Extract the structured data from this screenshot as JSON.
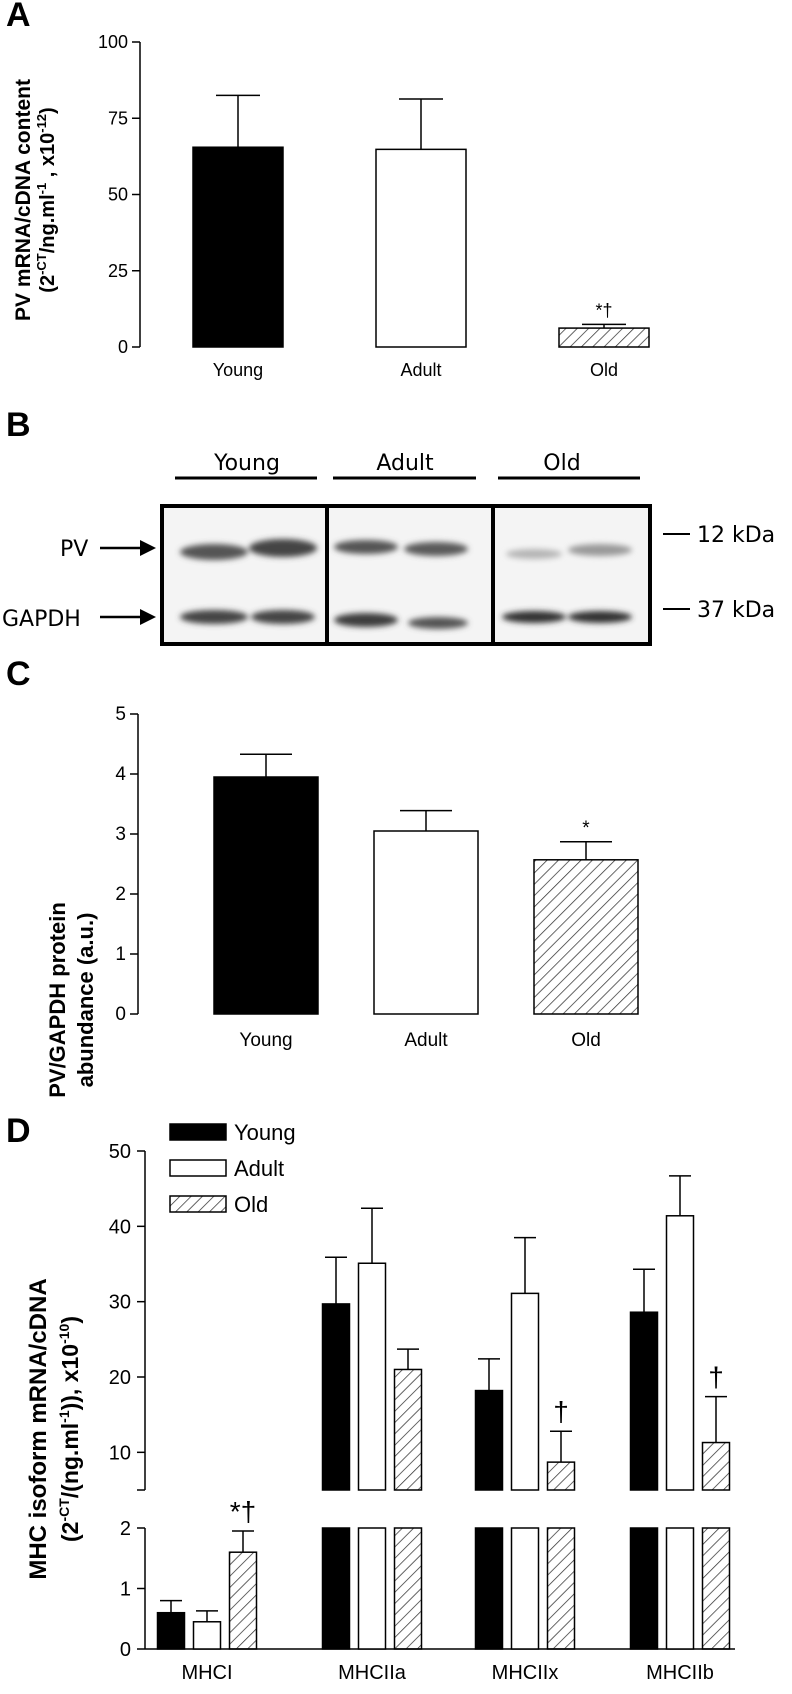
{
  "panels": {
    "a": {
      "letter": "A",
      "ylabel_line1": "PV mRNA/cDNA content",
      "ylabel_line2_parts": [
        "(2",
        "-CT",
        "/ng.ml",
        "-1",
        " , x10",
        "-12",
        ")"
      ],
      "chart_data": {
        "type": "bar",
        "categories": [
          "Young",
          "Adult",
          "Old"
        ],
        "values": [
          65.5,
          64.8,
          6.2
        ],
        "errors": [
          17,
          16.5,
          1.2
        ],
        "fills": [
          "solid-black",
          "white",
          "hatched"
        ],
        "annotations": [
          "",
          "",
          "*†"
        ],
        "yticks": [
          "0",
          "25",
          "50",
          "75",
          "100"
        ],
        "ylim": [
          0,
          100
        ],
        "ylabel": "PV mRNA/cDNA content (2-CT/ng.ml-1 , x10-12)"
      }
    },
    "b": {
      "letter": "B",
      "groups": [
        "Young",
        "Adult",
        "Old"
      ],
      "rows": [
        "PV",
        "GAPDH"
      ],
      "markers": [
        "12 kDa",
        "37 kDa"
      ]
    },
    "c": {
      "letter": "C",
      "ylabel_line1": "PV/GAPDH protein",
      "ylabel_line2": "abundance (a.u.)",
      "chart_data": {
        "type": "bar",
        "categories": [
          "Young",
          "Adult",
          "Old"
        ],
        "values": [
          3.95,
          3.05,
          2.57
        ],
        "errors": [
          0.38,
          0.34,
          0.3
        ],
        "fills": [
          "solid-black",
          "white",
          "hatched"
        ],
        "annotations": [
          "",
          "",
          "*"
        ],
        "yticks": [
          "0",
          "1",
          "2",
          "3",
          "4",
          "5"
        ],
        "ylim": [
          0,
          5
        ],
        "ylabel": "PV/GAPDH protein abundance (a.u.)"
      }
    },
    "d": {
      "letter": "D",
      "ylabel_line1": "MHC isoform mRNA/cDNA",
      "ylabel_line2_parts": [
        "(2",
        "-CT",
        "/(ng.ml",
        "-1",
        ")), x10",
        "-10",
        ")"
      ],
      "legend": [
        "Young",
        "Adult",
        "Old"
      ],
      "chart_data": {
        "type": "bar",
        "categories": [
          "MHCI",
          "MHCIIa",
          "MHCIIx",
          "MHCIIb"
        ],
        "series": [
          {
            "name": "Young",
            "values": [
              0.6,
              29.7,
              18.2,
              28.6
            ],
            "errors": [
              0.2,
              6.2,
              4.2,
              5.7
            ]
          },
          {
            "name": "Adult",
            "values": [
              0.45,
              35.1,
              31.1,
              41.4
            ],
            "errors": [
              0.18,
              7.3,
              7.4,
              5.3
            ]
          },
          {
            "name": "Old",
            "values": [
              1.6,
              21.0,
              8.7,
              11.3
            ],
            "errors": [
              0.35,
              2.7,
              4.1,
              6.1
            ]
          }
        ],
        "annotations": [
          [
            "",
            "",
            "*†"
          ],
          [
            "",
            "",
            ""
          ],
          [
            "",
            "",
            "†"
          ],
          [
            "",
            "",
            "†"
          ]
        ],
        "yticks_lower": [
          "0",
          "1",
          "2"
        ],
        "yticks_upper": [
          "10",
          "20",
          "30",
          "40",
          "50"
        ],
        "ylim_lower": [
          0,
          2
        ],
        "ylim_upper": [
          5,
          50
        ],
        "axis": "broken",
        "legend_position": "top-left",
        "ylabel": "MHC isoform mRNA/cDNA (2-CT/(ng.ml-1)), x10-10"
      }
    }
  }
}
